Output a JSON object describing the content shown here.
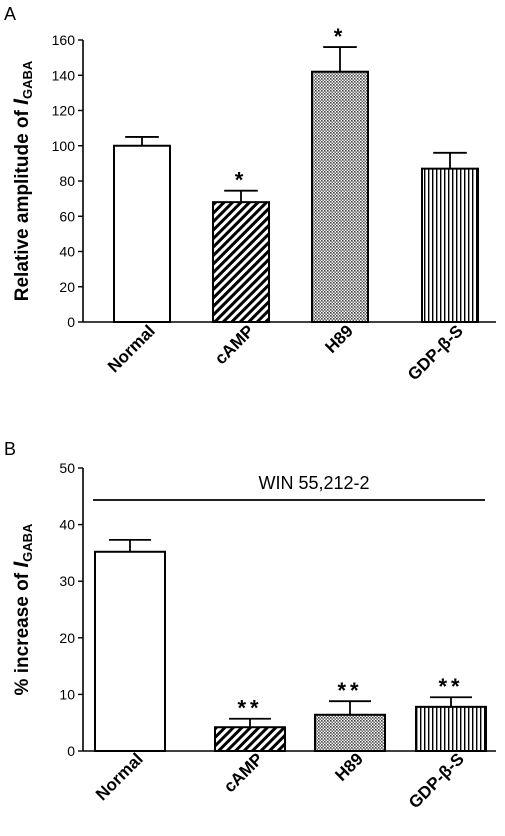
{
  "chart_data": [
    {
      "panel": "A",
      "type": "bar",
      "categories": [
        "Normal",
        "cAMP",
        "H89",
        "GDP-β-S"
      ],
      "values": [
        100,
        68,
        142,
        87
      ],
      "errors": [
        5,
        6.5,
        14,
        9
      ],
      "significance": [
        "",
        "*",
        "*",
        ""
      ],
      "ylabel": {
        "pre": "Relative amplitude of ",
        "italic": "I",
        "sub": "GABA"
      },
      "ylim": [
        0,
        160
      ],
      "yticks": [
        0,
        20,
        40,
        60,
        80,
        100,
        120,
        140,
        160
      ],
      "patterns": [
        "none",
        "diagonal",
        "dots",
        "vertical"
      ]
    },
    {
      "panel": "B",
      "type": "bar",
      "categories": [
        "Normal",
        "cAMP",
        "H89",
        "GDP-β-S"
      ],
      "values": [
        35.2,
        4.2,
        6.4,
        7.8
      ],
      "errors": [
        2.1,
        1.5,
        2.4,
        1.7
      ],
      "significance": [
        "",
        "**",
        "**",
        "**"
      ],
      "ylabel": {
        "pre": "% increase of ",
        "italic": "I",
        "sub": "GABA"
      },
      "ylim": [
        0,
        50
      ],
      "yticks": [
        0,
        10,
        20,
        30,
        40,
        50
      ],
      "annotation": "WIN 55,212-2",
      "patterns": [
        "none",
        "diagonal",
        "dots",
        "vertical"
      ]
    }
  ]
}
